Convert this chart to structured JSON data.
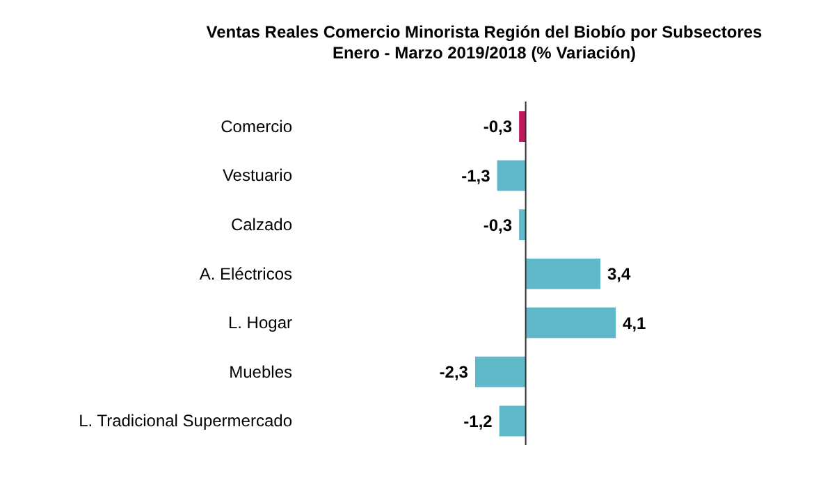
{
  "chart_data": {
    "type": "bar",
    "orientation": "horizontal",
    "title": "Ventas Reales Comercio Minorista Región del Biobío por Subsectores",
    "subtitle": "Enero - Marzo  2019/2018  (% Variación)",
    "categories": [
      "Comercio",
      "Vestuario",
      "Calzado",
      "A. Eléctricos",
      "L. Hogar",
      "Muebles",
      "L. Tradicional Supermercado"
    ],
    "values": [
      -0.3,
      -1.3,
      -0.3,
      3.4,
      4.1,
      -2.3,
      -1.2
    ],
    "colors": [
      "#c0175d",
      "#5fb9c9",
      "#5fb9c9",
      "#5fb9c9",
      "#5fb9c9",
      "#5fb9c9",
      "#5fb9c9"
    ],
    "value_labels": [
      "-0,3",
      "-1,3",
      "-0,3",
      "3,4",
      "4,1",
      "-2,3",
      "-1,2"
    ]
  }
}
